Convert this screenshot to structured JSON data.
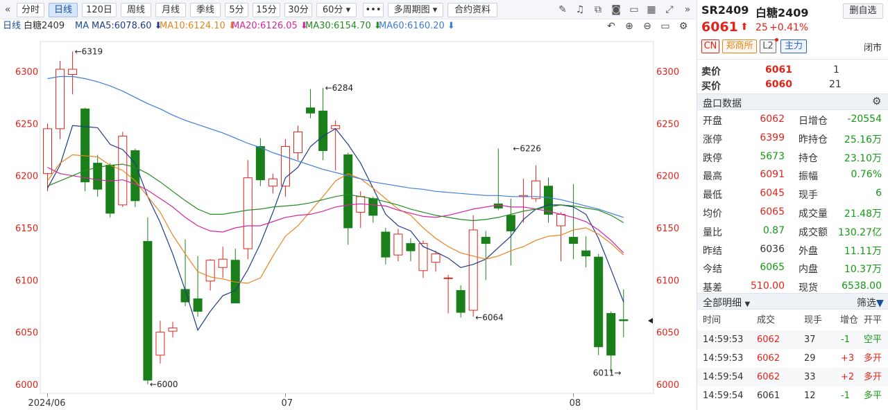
{
  "toolbar": {
    "collapse_icon": "double-chevron-left-icon",
    "periods": [
      "分时",
      "日线",
      "120日",
      "周线",
      "月线",
      "季线",
      "5分",
      "15分",
      "30分",
      "60分"
    ],
    "active_period": "日线",
    "more_label": "•••",
    "multi_period_label": "多周期图",
    "contract_info_label": "合约资料",
    "icons": [
      "pencil-icon",
      "bell-icon",
      "copy-icon",
      "camera-icon",
      "window-icon",
      "chart-settings-icon",
      "expand-icon",
      "double-chevron-right-icon"
    ]
  },
  "ma_bar": {
    "period_label": "日线",
    "symbol_name": "白糖2409",
    "ma_label": "MA",
    "items": [
      {
        "text": "MA5:6078.60 ⬇",
        "color": "#1f3a8a"
      },
      {
        "text": "MA10:6124.10 ⬇",
        "color": "#e6841e"
      },
      {
        "text": "MA20:6126.05 ⬇",
        "color": "#d6249f"
      },
      {
        "text": "MA30:6154.70 ⬇",
        "color": "#238b23"
      },
      {
        "text": "MA60:6160.20 ⬇",
        "color": "#3b7dd8"
      }
    ],
    "tool_icons": [
      "undo-icon",
      "zoom-in-icon",
      "zoom-out-icon",
      "layout-icon",
      "settings-icon"
    ]
  },
  "chart_data": {
    "type": "candlestick",
    "y_ticks": [
      6000,
      6050,
      6100,
      6150,
      6200,
      6250,
      6300
    ],
    "ylim": [
      5990,
      6330
    ],
    "x_labels": [
      {
        "label": "2024/06",
        "index": 0
      },
      {
        "label": "07",
        "index": 19
      },
      {
        "label": "08",
        "index": 42
      }
    ],
    "annotations": [
      {
        "text": "←6319",
        "index": 2,
        "value": 6319,
        "side": "right"
      },
      {
        "text": "←6000",
        "index": 8,
        "value": 6000,
        "side": "right"
      },
      {
        "text": "←6284",
        "index": 22,
        "value": 6284,
        "side": "right"
      },
      {
        "text": "←6064",
        "index": 34,
        "value": 6064,
        "side": "right"
      },
      {
        "text": "←6226",
        "index": 37,
        "value": 6226,
        "side": "right"
      },
      {
        "text": "6011→",
        "index": 46,
        "value": 6011,
        "side": "left"
      }
    ],
    "candles": [
      {
        "o": 6202,
        "h": 6250,
        "l": 6185,
        "c": 6245
      },
      {
        "o": 6245,
        "h": 6310,
        "l": 6235,
        "c": 6302
      },
      {
        "o": 6297,
        "h": 6319,
        "l": 6278,
        "c": 6302
      },
      {
        "o": 6264,
        "h": 6265,
        "l": 6185,
        "c": 6194
      },
      {
        "o": 6212,
        "h": 6220,
        "l": 6180,
        "c": 6187
      },
      {
        "o": 6210,
        "h": 6212,
        "l": 6160,
        "c": 6164
      },
      {
        "o": 6172,
        "h": 6242,
        "l": 6170,
        "c": 6238
      },
      {
        "o": 6224,
        "h": 6226,
        "l": 6170,
        "c": 6176
      },
      {
        "o": 6137,
        "h": 6160,
        "l": 6000,
        "c": 6004
      },
      {
        "o": 6028,
        "h": 6061,
        "l": 6020,
        "c": 6050
      },
      {
        "o": 6051,
        "h": 6060,
        "l": 6045,
        "c": 6054
      },
      {
        "o": 6091,
        "h": 6139,
        "l": 6075,
        "c": 6079
      },
      {
        "o": 6082,
        "h": 6123,
        "l": 6065,
        "c": 6070
      },
      {
        "o": 6099,
        "h": 6120,
        "l": 6090,
        "c": 6119
      },
      {
        "o": 6112,
        "h": 6132,
        "l": 6102,
        "c": 6120
      },
      {
        "o": 6119,
        "h": 6130,
        "l": 6078,
        "c": 6078
      },
      {
        "o": 6130,
        "h": 6215,
        "l": 6120,
        "c": 6198
      },
      {
        "o": 6228,
        "h": 6236,
        "l": 6190,
        "c": 6196
      },
      {
        "o": 6190,
        "h": 6202,
        "l": 6183,
        "c": 6197
      },
      {
        "o": 6190,
        "h": 6235,
        "l": 6180,
        "c": 6228
      },
      {
        "o": 6222,
        "h": 6248,
        "l": 6215,
        "c": 6242
      },
      {
        "o": 6265,
        "h": 6283,
        "l": 6255,
        "c": 6260
      },
      {
        "o": 6262,
        "h": 6284,
        "l": 6215,
        "c": 6224
      },
      {
        "o": 6245,
        "h": 6253,
        "l": 6205,
        "c": 6248
      },
      {
        "o": 6220,
        "h": 6222,
        "l": 6134,
        "c": 6150
      },
      {
        "o": 6165,
        "h": 6185,
        "l": 6150,
        "c": 6180
      },
      {
        "o": 6178,
        "h": 6180,
        "l": 6155,
        "c": 6162
      },
      {
        "o": 6146,
        "h": 6150,
        "l": 6115,
        "c": 6122
      },
      {
        "o": 6124,
        "h": 6149,
        "l": 6118,
        "c": 6144
      },
      {
        "o": 6135,
        "h": 6140,
        "l": 6118,
        "c": 6128
      },
      {
        "o": 6109,
        "h": 6138,
        "l": 6102,
        "c": 6135
      },
      {
        "o": 6117,
        "h": 6128,
        "l": 6108,
        "c": 6125
      },
      {
        "o": 6102,
        "h": 6105,
        "l": 6068,
        "c": 6102
      },
      {
        "o": 6090,
        "h": 6095,
        "l": 6064,
        "c": 6069
      },
      {
        "o": 6071,
        "h": 6162,
        "l": 6065,
        "c": 6148
      },
      {
        "o": 6141,
        "h": 6147,
        "l": 6100,
        "c": 6135
      },
      {
        "o": 6173,
        "h": 6226,
        "l": 6167,
        "c": 6169
      },
      {
        "o": 6162,
        "h": 6178,
        "l": 6114,
        "c": 6147
      },
      {
        "o": 6180,
        "h": 6197,
        "l": 6155,
        "c": 6181
      },
      {
        "o": 6178,
        "h": 6210,
        "l": 6175,
        "c": 6195
      },
      {
        "o": 6190,
        "h": 6198,
        "l": 6155,
        "c": 6163
      },
      {
        "o": 6152,
        "h": 6165,
        "l": 6118,
        "c": 6163
      },
      {
        "o": 6141,
        "h": 6192,
        "l": 6120,
        "c": 6135
      },
      {
        "o": 6128,
        "h": 6142,
        "l": 6112,
        "c": 6123
      },
      {
        "o": 6122,
        "h": 6125,
        "l": 6028,
        "c": 6036
      },
      {
        "o": 6068,
        "h": 6070,
        "l": 6011,
        "c": 6028
      },
      {
        "o": 6062,
        "h": 6091,
        "l": 6045,
        "c": 6061
      }
    ],
    "ma_lines": [
      {
        "name": "MA5",
        "color": "#1f3a8a",
        "values": [
          6188,
          6210,
          6248,
          6247,
          6246,
          6230,
          6225,
          6212,
          6180,
          6155,
          6125,
          6090,
          6052,
          6070,
          6085,
          6090,
          6110,
          6135,
          6165,
          6198,
          6208,
          6228,
          6238,
          6245,
          6230,
          6212,
          6188,
          6163,
          6152,
          6147,
          6132,
          6127,
          6121,
          6112,
          6115,
          6120,
          6131,
          6142,
          6158,
          6168,
          6172,
          6172,
          6170,
          6163,
          6140,
          6110,
          6079
        ]
      },
      {
        "name": "MA10",
        "color": "#e6841e",
        "values": [
          6195,
          6212,
          6220,
          6219,
          6218,
          6210,
          6205,
          6195,
          6180,
          6165,
          6143,
          6125,
          6108,
          6103,
          6101,
          6098,
          6097,
          6102,
          6123,
          6142,
          6152,
          6166,
          6180,
          6195,
          6202,
          6197,
          6188,
          6178,
          6168,
          6162,
          6150,
          6140,
          6132,
          6126,
          6123,
          6120,
          6123,
          6128,
          6132,
          6138,
          6142,
          6143,
          6148,
          6150,
          6144,
          6135,
          6124
        ]
      },
      {
        "name": "MA20",
        "color": "#d6249f",
        "values": [
          6208,
          6202,
          6200,
          6198,
          6196,
          6195,
          6196,
          6192,
          6186,
          6178,
          6170,
          6160,
          6152,
          6147,
          6146,
          6150,
          6152,
          6152,
          6156,
          6160,
          6162,
          6163,
          6166,
          6170,
          6172,
          6173,
          6172,
          6171,
          6167,
          6164,
          6161,
          6160,
          6162,
          6165,
          6168,
          6170,
          6172,
          6170,
          6170,
          6168,
          6166,
          6163,
          6160,
          6156,
          6148,
          6138,
          6126
        ]
      },
      {
        "name": "MA30",
        "color": "#238b23",
        "values": [
          6190,
          6195,
          6200,
          6205,
          6208,
          6210,
          6211,
          6208,
          6202,
          6194,
          6185,
          6176,
          6168,
          6163,
          6163,
          6165,
          6167,
          6168,
          6170,
          6171,
          6172,
          6174,
          6177,
          6180,
          6182,
          6180,
          6178,
          6175,
          6172,
          6168,
          6165,
          6162,
          6160,
          6158,
          6157,
          6158,
          6160,
          6163,
          6166,
          6168,
          6170,
          6172,
          6171,
          6169,
          6167,
          6162,
          6155
        ]
      },
      {
        "name": "MA60",
        "color": "#3b7dd8",
        "values": [
          6293,
          6295,
          6295,
          6293,
          6290,
          6286,
          6281,
          6275,
          6269,
          6264,
          6258,
          6253,
          6249,
          6245,
          6241,
          6236,
          6231,
          6227,
          6222,
          6218,
          6214,
          6210,
          6206,
          6203,
          6200,
          6197,
          6194,
          6192,
          6190,
          6188,
          6187,
          6185,
          6184,
          6183,
          6182,
          6181,
          6181,
          6180,
          6180,
          6180,
          6179,
          6177,
          6174,
          6171,
          6168,
          6164,
          6160
        ]
      }
    ],
    "last_price_marker": 6061,
    "grid": false
  },
  "panel": {
    "code": "SR2409",
    "name": "白糖2409",
    "remove_fav_label": "删自选",
    "price": "6061",
    "change": "25",
    "change_pct": "+0.41%",
    "tags": [
      {
        "text": "CN",
        "color": "#e2231a"
      },
      {
        "text": "郑商所",
        "color": "#e6841e"
      },
      {
        "text": "L2",
        "color": "#555555"
      },
      {
        "text": "主力",
        "color": "#2a64c5"
      }
    ],
    "status": "闭市",
    "ask_label": "卖价",
    "ask_price": "6061",
    "ask_vol": "1",
    "bid_label": "买价",
    "bid_price": "6060",
    "bid_vol": "21",
    "quote_section": "盘口数据",
    "quote_rows": [
      {
        "k1": "开盘",
        "v1": "6062",
        "c1": "red",
        "k2": "日增仓",
        "v2": "-20554",
        "c2": "green"
      },
      {
        "k1": "涨停",
        "v1": "6399",
        "c1": "red",
        "k2": "昨持仓",
        "v2": "25.16万",
        "c2": "green"
      },
      {
        "k1": "跌停",
        "v1": "5673",
        "c1": "green",
        "k2": "持仓",
        "v2": "23.10万",
        "c2": "green"
      },
      {
        "k1": "最高",
        "v1": "6091",
        "c1": "red",
        "k2": "振幅",
        "v2": "0.76%",
        "c2": "green"
      },
      {
        "k1": "最低",
        "v1": "6045",
        "c1": "red",
        "k2": "现手",
        "v2": "6",
        "c2": "green"
      },
      {
        "k1": "均价",
        "v1": "6065",
        "c1": "red",
        "k2": "成交量",
        "v2": "21.48万",
        "c2": "green"
      },
      {
        "k1": "量比",
        "v1": "0.87",
        "c1": "green",
        "k2": "成交额",
        "v2": "130.27亿",
        "c2": "green"
      },
      {
        "k1": "昨结",
        "v1": "6036",
        "c1": "blk",
        "k2": "外盘",
        "v2": "11.11万",
        "c2": "green"
      },
      {
        "k1": "今结",
        "v1": "6065",
        "c1": "green",
        "k2": "内盘",
        "v2": "10.37万",
        "c2": "green"
      },
      {
        "k1": "基差",
        "v1": "510.00",
        "c1": "red",
        "k2": "现货",
        "v2": "6538.00",
        "c2": "green"
      }
    ],
    "detail_section": "全部明细",
    "filter_label": "筛选",
    "trade_headers": [
      "时间",
      "成交",
      "现手",
      "增仓",
      "开平"
    ],
    "trades": [
      {
        "time": "14:59:53",
        "price": "6062",
        "vol": "37",
        "oi": "-1",
        "type": "空平",
        "pc": "red",
        "oc": "green",
        "tc": "green"
      },
      {
        "time": "14:59:53",
        "price": "6062",
        "vol": "29",
        "oi": "+3",
        "type": "多开",
        "pc": "red",
        "oc": "red",
        "tc": "red"
      },
      {
        "time": "14:59:54",
        "price": "6062",
        "vol": "33",
        "oi": "+2",
        "type": "多开",
        "pc": "red",
        "oc": "red",
        "tc": "red"
      },
      {
        "time": "14:59:54",
        "price": "6061",
        "vol": "12",
        "oi": "-1",
        "type": "多平",
        "pc": "blk",
        "oc": "green",
        "tc": "green"
      }
    ]
  }
}
